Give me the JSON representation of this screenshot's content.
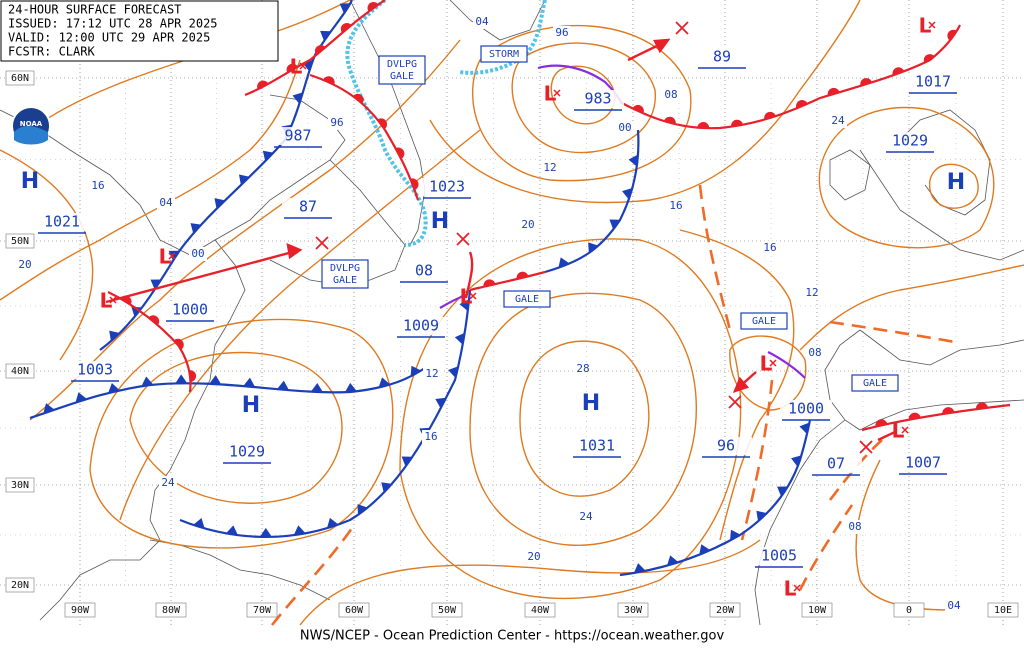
{
  "header": {
    "lines": [
      "24-HOUR SURFACE FORECAST",
      "ISSUED: 17:12 UTC 28 APR 2025",
      "VALID: 12:00 UTC 29 APR 2025",
      "FCSTR: CLARK"
    ]
  },
  "logo": "NOAA",
  "footer": "NWS/NCEP - Ocean Prediction Center - https://ocean.weather.gov",
  "lat_labels": [
    "60N",
    "50N",
    "40N",
    "30N",
    "20N"
  ],
  "lon_labels": [
    "90W",
    "80W",
    "70W",
    "60W",
    "50W",
    "40W",
    "30W",
    "20W",
    "10W",
    "0",
    "10E"
  ],
  "high_symbol": "H",
  "low_symbol": "L",
  "pressure_labels": [
    "1021",
    "987",
    "87",
    "1023",
    "08",
    "1000",
    "1003",
    "1009",
    "1029",
    "1031",
    "983",
    "89",
    "1017",
    "1029",
    "1000",
    "96",
    "07",
    "1007",
    "1005"
  ],
  "isobar_labels": [
    "04",
    "96",
    "08",
    "00",
    "12",
    "16",
    "04",
    "00",
    "20",
    "96",
    "20",
    "16",
    "16",
    "12",
    "08",
    "24",
    "28",
    "12",
    "16",
    "24",
    "24",
    "20",
    "08",
    "04"
  ],
  "box_labels": [
    {
      "lines": [
        "DVLPG",
        "GALE"
      ]
    },
    {
      "lines": [
        "STORM"
      ]
    },
    {
      "lines": [
        "DVLPG",
        "GALE"
      ]
    },
    {
      "lines": [
        "GALE"
      ]
    },
    {
      "lines": [
        "GALE"
      ]
    },
    {
      "lines": [
        "GALE"
      ]
    }
  ]
}
